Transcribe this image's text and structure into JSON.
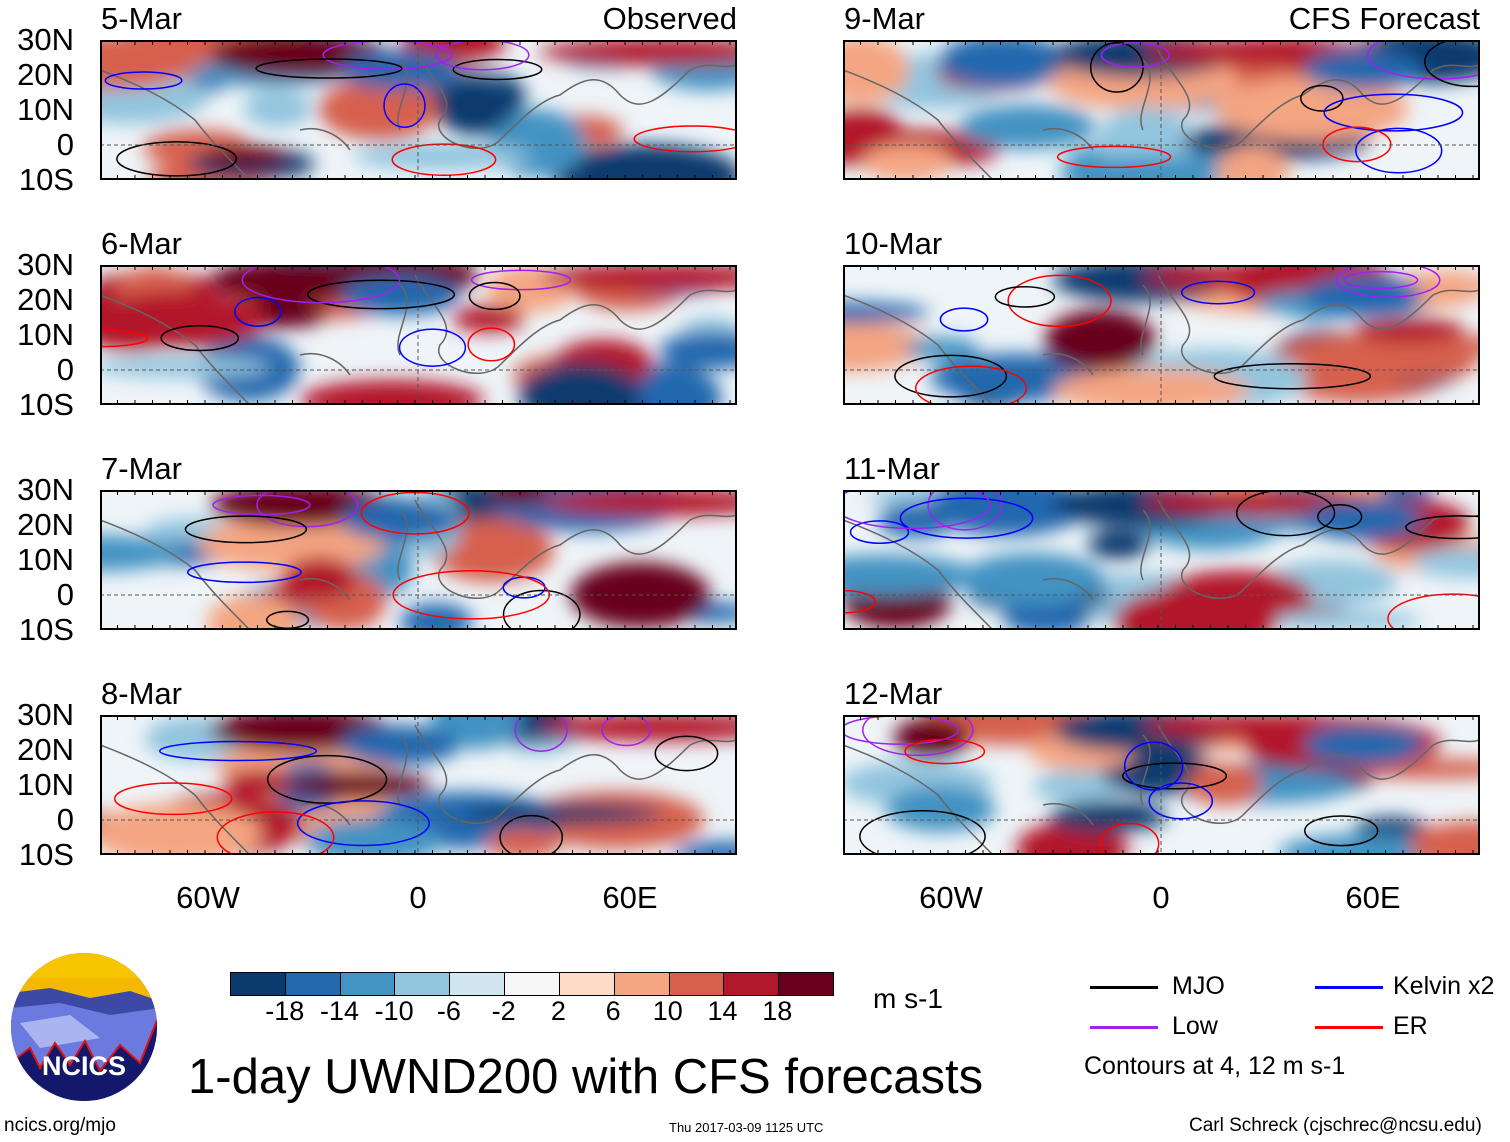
{
  "panels": {
    "left": [
      {
        "date": "5-Mar",
        "label": "Observed"
      },
      {
        "date": "6-Mar"
      },
      {
        "date": "7-Mar"
      },
      {
        "date": "8-Mar"
      }
    ],
    "right": [
      {
        "date": "9-Mar",
        "label": "CFS Forecast"
      },
      {
        "date": "10-Mar"
      },
      {
        "date": "11-Mar"
      },
      {
        "date": "12-Mar"
      }
    ]
  },
  "lat_labels": [
    "30N",
    "20N",
    "10N",
    "0",
    "10S"
  ],
  "lon_labels": [
    "60W",
    "0",
    "60E"
  ],
  "colorbar": {
    "colors": [
      "#0b3a6e",
      "#2468ae",
      "#4393c3",
      "#92c5de",
      "#d1e5f0",
      "#f7f7f7",
      "#fddbc7",
      "#f4a582",
      "#d6604d",
      "#b2182b",
      "#67001f"
    ],
    "labels": [
      "-18",
      "-14",
      "-10",
      "-6",
      "-2",
      "2",
      "6",
      "10",
      "14",
      "18"
    ],
    "units": "m s-1"
  },
  "legend": {
    "items": [
      {
        "label": "MJO",
        "color": "#000000"
      },
      {
        "label": "Kelvin x2",
        "color": "#0000ff"
      },
      {
        "label": "Low",
        "color": "#a020f0"
      },
      {
        "label": "ER",
        "color": "#ff0000"
      }
    ],
    "note": "Contours at 4, 12 m s-1"
  },
  "logo_text": "NCICS",
  "title": "1-day UWND200 with CFS forecasts",
  "footer": {
    "left": "ncics.org/mjo",
    "center": "Thu 2017-03-09 1125 UTC",
    "right": "Carl Schreck (cjschrec@ncsu.edu)"
  }
}
